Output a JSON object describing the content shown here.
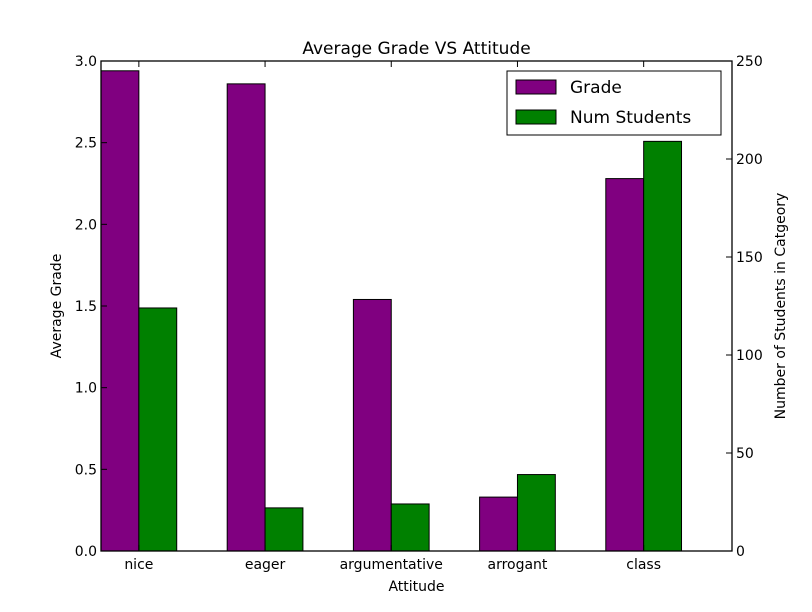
{
  "chart_data": {
    "type": "bar",
    "title": "Average Grade VS Attitude",
    "xlabel": "Attitude",
    "ylabel": "Average Grade",
    "y2label": "Number of Students in Catgeory",
    "categories": [
      "nice",
      "eager",
      "argumentative",
      "arrogant",
      "class"
    ],
    "ylim": [
      0,
      3.0
    ],
    "y2lim": [
      0,
      250
    ],
    "yticks": [
      "0.0",
      "0.5",
      "1.0",
      "1.5",
      "2.0",
      "2.5",
      "3.0"
    ],
    "y2ticks": [
      "0",
      "50",
      "100",
      "150",
      "200",
      "250"
    ],
    "series": [
      {
        "name": "Grade",
        "axis": "left",
        "color": "#800080",
        "values": [
          2.94,
          2.86,
          1.54,
          0.33,
          2.28
        ]
      },
      {
        "name": "Num Students",
        "axis": "right",
        "color": "#008000",
        "values": [
          124,
          22,
          24,
          39,
          209
        ]
      }
    ],
    "legend": "top-right",
    "grid": false
  }
}
